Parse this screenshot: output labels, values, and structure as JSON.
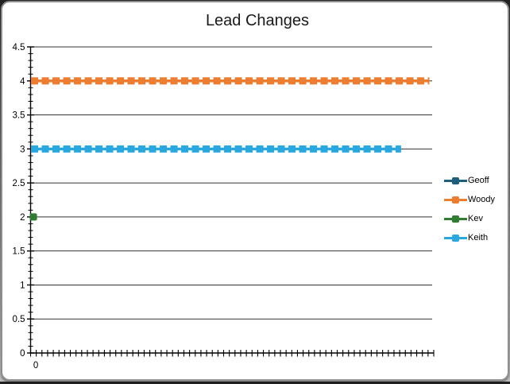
{
  "window": {
    "background": "#ffffff",
    "border_color": "#8e8e8e"
  },
  "chart_data": {
    "type": "line",
    "title": "Lead Changes",
    "subtitle": "",
    "legend_position": "right",
    "grid": "horizontal-major",
    "marker_style": "square-dash",
    "x_axis": {
      "label": "",
      "num_categories": 71,
      "tick_marks": 72,
      "first_tick_label": "0"
    },
    "y_axis": {
      "label": "",
      "min": 0,
      "max": 4.5,
      "major_step": 0.5,
      "minor_step": 0.1,
      "tick_labels": [
        "4.5",
        "4",
        "3.5",
        "3",
        "2.5",
        "2",
        "1.5",
        "1",
        "0.5",
        "0"
      ]
    },
    "series": [
      {
        "name": "Geoff",
        "color": "#1E5F7E",
        "visible_points": []
      },
      {
        "name": "Woody",
        "color": "#ED7D31",
        "constant_value": 4,
        "x_from": 0,
        "x_to": 70
      },
      {
        "name": "Kev",
        "color": "#2E7D31",
        "visible_points": [
          [
            0,
            2
          ]
        ]
      },
      {
        "name": "Keith",
        "color": "#29A8E0",
        "constant_value": 3,
        "x_from": 0,
        "x_to": 65
      }
    ],
    "colors": {
      "axis": "#000000",
      "gridline": "#333333",
      "text": "#000000"
    }
  }
}
